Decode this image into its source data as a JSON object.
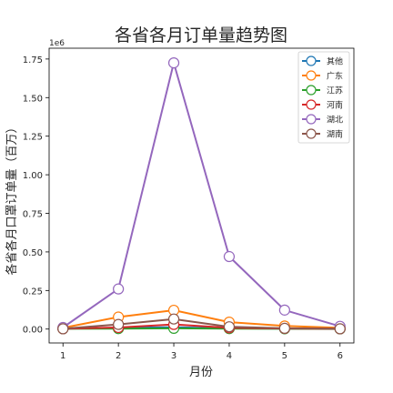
{
  "chart_data": {
    "type": "line",
    "title": "各省各月订单量趋势图",
    "xlabel": "月份",
    "ylabel": "各省各月口罩订单量（百万）",
    "offset_label": "1e6",
    "x": [
      1,
      2,
      3,
      4,
      5,
      6
    ],
    "xlim": [
      0.75,
      6.25
    ],
    "ylim": [
      -0.09,
      1.82
    ],
    "y_ticks": [
      0.0,
      0.25,
      0.5,
      0.75,
      1.0,
      1.25,
      1.5,
      1.75
    ],
    "y_tick_labels": [
      "0.00",
      "0.25",
      "0.50",
      "0.75",
      "1.00",
      "1.25",
      "1.50",
      "1.75"
    ],
    "x_tick_labels": [
      "1",
      "2",
      "3",
      "4",
      "5",
      "6"
    ],
    "legend_position": "top-right",
    "grid": false,
    "series": [
      {
        "name": "其他",
        "color": "#1f77b4",
        "values": [
          3000,
          8000,
          12000,
          5000,
          3000,
          2000
        ]
      },
      {
        "name": "广东",
        "color": "#ff7f0e",
        "values": [
          8000,
          78000,
          122000,
          45000,
          20000,
          8000
        ]
      },
      {
        "name": "江苏",
        "color": "#2ca02c",
        "values": [
          2000,
          3000,
          5000,
          3000,
          2000,
          1000
        ]
      },
      {
        "name": "河南",
        "color": "#d62728",
        "values": [
          2000,
          10000,
          30000,
          8000,
          4000,
          2000
        ]
      },
      {
        "name": "湖北",
        "color": "#9467bd",
        "values": [
          10000,
          260000,
          1725000,
          470000,
          123000,
          18000
        ]
      },
      {
        "name": "湖南",
        "color": "#8c564b",
        "values": [
          2000,
          30000,
          65000,
          15000,
          5000,
          2000
        ]
      }
    ]
  }
}
